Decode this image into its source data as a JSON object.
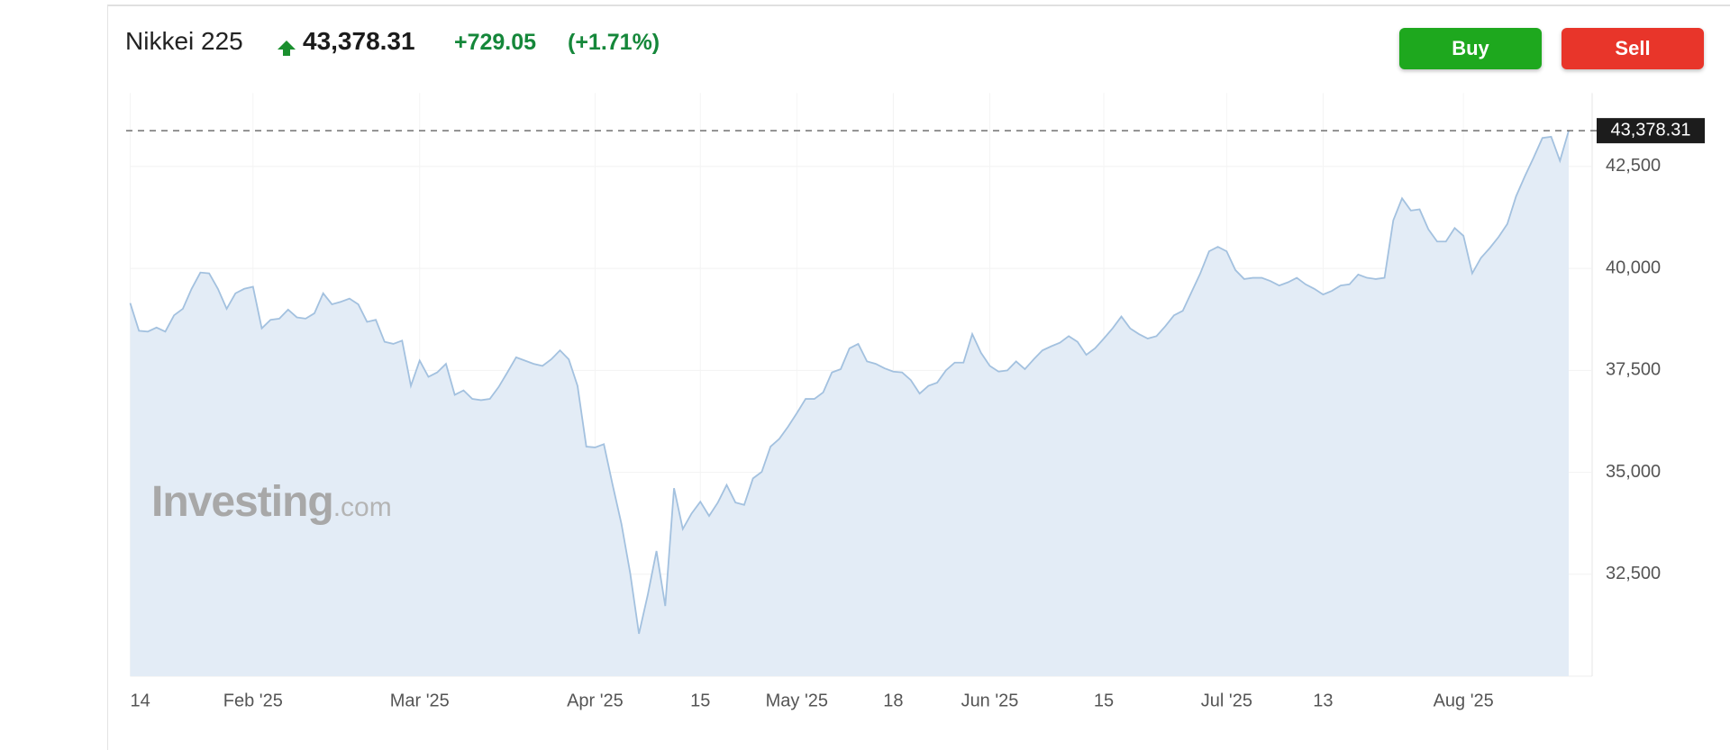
{
  "header": {
    "name": "Nikkei 225",
    "price": "43,378.31",
    "change": "+729.05",
    "change_pct": "(+1.71%)"
  },
  "buttons": [
    "Buy",
    "Sell"
  ],
  "watermark": [
    "Investing",
    ".com"
  ],
  "chart_data": {
    "type": "area",
    "color": "#a3c1df",
    "fill": "#e3ecf6",
    "grid": true,
    "categories": [
      "14",
      null,
      null,
      null,
      null,
      null,
      null,
      null,
      null,
      null,
      null,
      null,
      null,
      null,
      "Feb '25",
      null,
      null,
      null,
      null,
      null,
      null,
      null,
      null,
      null,
      null,
      null,
      null,
      null,
      null,
      null,
      null,
      null,
      null,
      "Mar '25",
      null,
      null,
      null,
      null,
      null,
      null,
      null,
      null,
      null,
      null,
      null,
      null,
      null,
      null,
      null,
      null,
      null,
      null,
      null,
      "Apr '25",
      null,
      null,
      null,
      null,
      null,
      null,
      null,
      null,
      null,
      null,
      null,
      "15",
      null,
      null,
      null,
      null,
      null,
      null,
      null,
      null,
      null,
      null,
      "May '25",
      null,
      null,
      null,
      null,
      null,
      null,
      null,
      null,
      null,
      null,
      "18",
      null,
      null,
      null,
      null,
      null,
      null,
      null,
      null,
      null,
      null,
      "Jun '25",
      null,
      null,
      null,
      null,
      null,
      null,
      null,
      null,
      null,
      null,
      null,
      null,
      "15",
      null,
      null,
      null,
      null,
      null,
      null,
      null,
      null,
      null,
      null,
      null,
      null,
      null,
      "Jul '25",
      null,
      null,
      null,
      null,
      null,
      null,
      null,
      null,
      null,
      null,
      "13",
      null,
      null,
      null,
      null,
      null,
      null,
      null,
      null,
      null,
      null,
      null,
      null,
      null,
      null,
      null,
      "Aug '25",
      null,
      null,
      null,
      null,
      null,
      null,
      null,
      null,
      null,
      null,
      null,
      null
    ],
    "values": [
      39150,
      38470,
      38450,
      38550,
      38450,
      38850,
      39010,
      39500,
      39900,
      39880,
      39500,
      39010,
      39390,
      39500,
      39550,
      38530,
      38740,
      38770,
      38990,
      38800,
      38770,
      38900,
      39390,
      39120,
      39180,
      39260,
      39120,
      38690,
      38740,
      38200,
      38150,
      38230,
      37120,
      37740,
      37340,
      37450,
      37660,
      36900,
      37010,
      36800,
      36770,
      36800,
      37090,
      37450,
      37820,
      37740,
      37660,
      37610,
      37770,
      37990,
      37770,
      37120,
      35630,
      35610,
      35690,
      34690,
      33740,
      32530,
      31040,
      31990,
      33070,
      31720,
      34610,
      33610,
      33990,
      34280,
      33930,
      34260,
      34690,
      34260,
      34200,
      34850,
      35010,
      35630,
      35820,
      36120,
      36450,
      36800,
      36800,
      36960,
      37450,
      37530,
      38040,
      38150,
      37720,
      37660,
      37550,
      37470,
      37450,
      37260,
      36930,
      37120,
      37200,
      37500,
      37690,
      37690,
      38390,
      37930,
      37610,
      37470,
      37500,
      37720,
      37530,
      37770,
      37990,
      38090,
      38180,
      38340,
      38200,
      37880,
      38040,
      38280,
      38530,
      38820,
      38530,
      38390,
      38280,
      38340,
      38580,
      38850,
      38960,
      39420,
      39880,
      40420,
      40530,
      40420,
      39960,
      39740,
      39770,
      39770,
      39690,
      39580,
      39660,
      39770,
      39610,
      39500,
      39360,
      39450,
      39580,
      39610,
      39850,
      39770,
      39740,
      39770,
      41180,
      41720,
      41420,
      41450,
      40960,
      40660,
      40660,
      40990,
      40800,
      39880,
      40260,
      40500,
      40770,
      41090,
      41770,
      42260,
      42720,
      43200,
      43230,
      42640,
      43378.31
    ],
    "ylim": [
      30000,
      44300
    ],
    "yticks": [
      {
        "value": 32500,
        "label": "32,500"
      },
      {
        "value": 35000,
        "label": "35,000"
      },
      {
        "value": 37500,
        "label": "37,500"
      },
      {
        "value": 40000,
        "label": "40,000"
      },
      {
        "value": 42500,
        "label": "42,500"
      }
    ]
  }
}
